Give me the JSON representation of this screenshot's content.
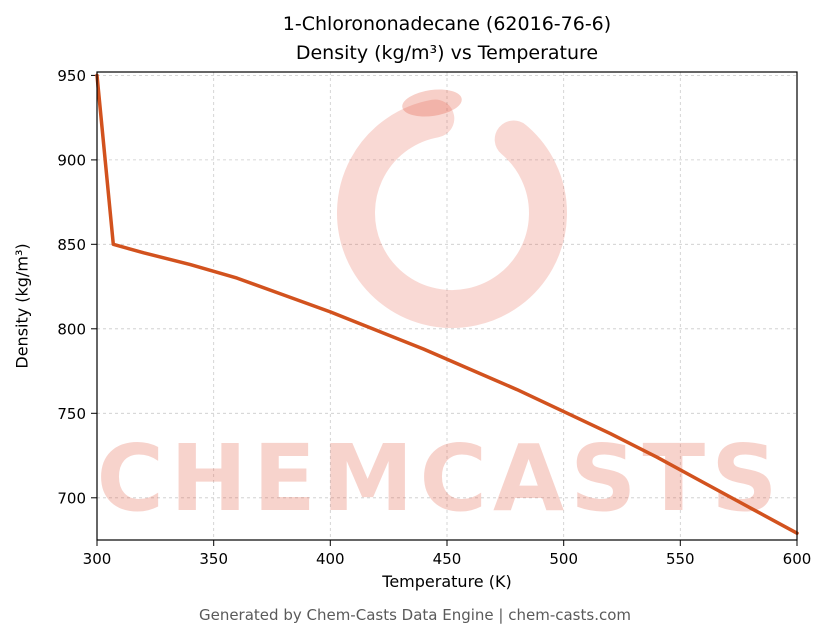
{
  "title_line1": "1-Chlorononadecane (62016-76-6)",
  "title_line2": "Density (kg/m³) vs Temperature",
  "footer": "Generated by Chem-Casts Data Engine | chem-casts.com",
  "watermark": {
    "text": "CHEMCASTS",
    "color": "#e2523a"
  },
  "chart_data": {
    "type": "line",
    "title": "1-Chlorononadecane (62016-76-6) Density (kg/m³) vs Temperature",
    "xlabel": "Temperature (K)",
    "ylabel": "Density (kg/m³)",
    "xlim": [
      300,
      600
    ],
    "ylim": [
      675,
      952
    ],
    "xticks": [
      300,
      350,
      400,
      450,
      500,
      550,
      600
    ],
    "yticks": [
      700,
      750,
      800,
      850,
      900,
      950
    ],
    "grid": true,
    "line_color": "#d2521e",
    "series": [
      {
        "name": "Density",
        "x": [
          300,
          307,
          320,
          340,
          360,
          380,
          400,
          420,
          440,
          460,
          480,
          500,
          520,
          540,
          560,
          580,
          600
        ],
        "y": [
          950,
          850,
          845,
          838,
          830,
          820,
          810,
          799,
          788,
          776,
          764,
          751,
          738,
          724,
          709,
          694,
          679
        ]
      }
    ]
  }
}
